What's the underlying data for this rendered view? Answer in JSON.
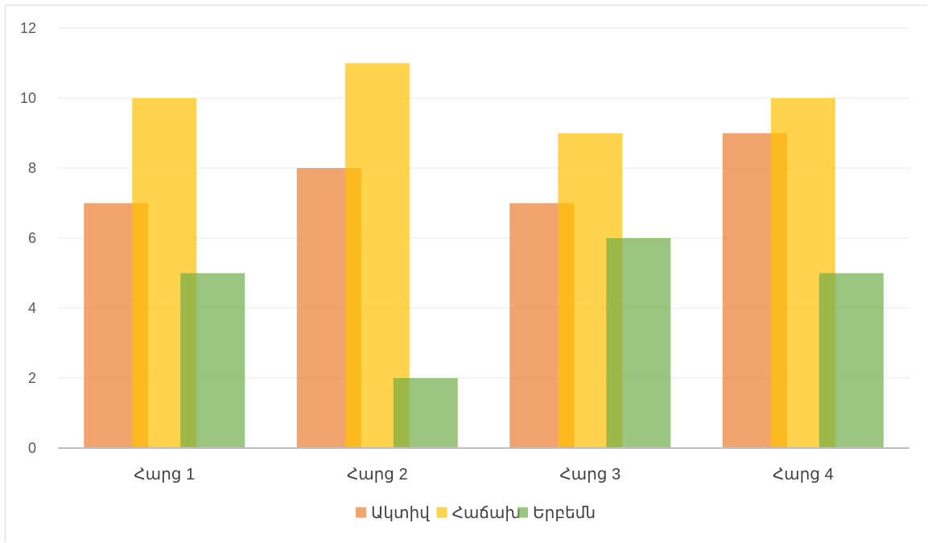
{
  "chart_data": {
    "type": "bar",
    "categories": [
      "Հարց 1",
      "Հարց 2",
      "Հարց 3",
      "Հարց 4"
    ],
    "series": [
      {
        "name": "Ակտիվ",
        "values": [
          7,
          8,
          7,
          9
        ],
        "color": "#ED7D31",
        "opacity": 0.7
      },
      {
        "name": "Հաճախ",
        "values": [
          10,
          11,
          9,
          10
        ],
        "color": "#FFC000",
        "opacity": 0.7
      },
      {
        "name": "Երբեմն",
        "values": [
          5,
          2,
          6,
          5
        ],
        "color": "#70AD47",
        "opacity": 0.7
      }
    ],
    "yticks": [
      "0",
      "2",
      "4",
      "6",
      "8",
      "10",
      "12"
    ],
    "ylim": [
      0,
      12
    ],
    "grid": true,
    "legend_position": "bottom",
    "gridline_color": "#e8e8e8",
    "axis_color": "#bfbfbf"
  }
}
